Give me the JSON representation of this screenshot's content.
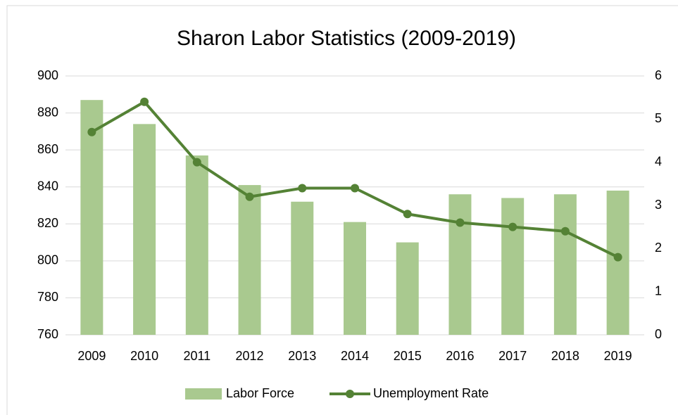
{
  "chart_data": {
    "type": "bar",
    "title": "Sharon Labor Statistics (2009-2019)",
    "categories": [
      "2009",
      "2010",
      "2011",
      "2012",
      "2013",
      "2014",
      "2015",
      "2016",
      "2017",
      "2018",
      "2019"
    ],
    "series": [
      {
        "name": "Labor Force",
        "type": "bar",
        "color": "#a9c98f",
        "values": [
          887,
          874,
          857,
          841,
          832,
          821,
          810,
          836,
          834,
          836,
          838
        ]
      },
      {
        "name": "Unemployment Rate",
        "type": "line",
        "axis": "y2",
        "color": "#548235",
        "values": [
          4.7,
          5.4,
          4.0,
          3.2,
          3.4,
          3.4,
          2.8,
          2.6,
          2.5,
          2.4,
          1.8
        ]
      }
    ],
    "ylim": [
      760,
      900
    ],
    "yticks": [
      760,
      780,
      800,
      820,
      840,
      860,
      880,
      900
    ],
    "y2lim": [
      0,
      6
    ],
    "y2ticks": [
      0,
      1,
      2,
      3,
      4,
      5,
      6
    ],
    "grid": true,
    "legend": "bottom"
  }
}
